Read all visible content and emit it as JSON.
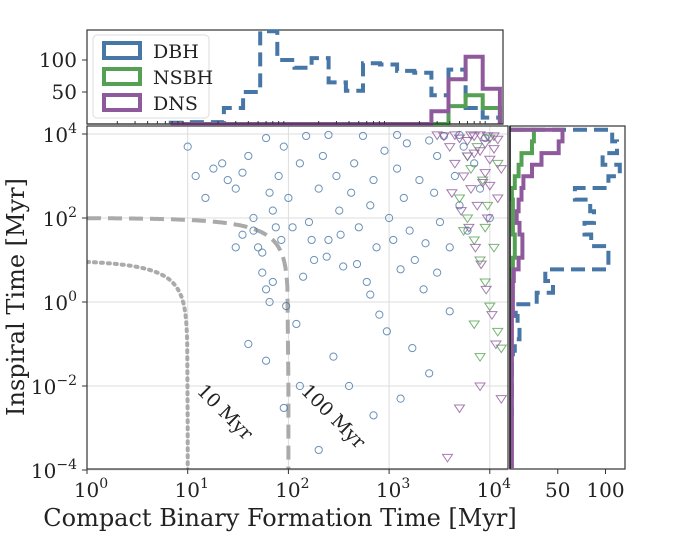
{
  "chart_data": {
    "type": "scatter",
    "xlabel": "Compact Binary Formation Time [Myr]",
    "ylabel": "Inspiral Time [Myr]",
    "xscale": "log",
    "yscale": "log",
    "xlim": [
      1,
      15000
    ],
    "ylim": [
      0.0001,
      16000
    ],
    "grid": true,
    "x_ticks": [
      {
        "base": "10",
        "exp": "0",
        "value": 1
      },
      {
        "base": "10",
        "exp": "1",
        "value": 10
      },
      {
        "base": "10",
        "exp": "2",
        "value": 100
      },
      {
        "base": "10",
        "exp": "3",
        "value": 1000
      },
      {
        "base": "10",
        "exp": "4",
        "value": 10000
      }
    ],
    "y_ticks": [
      {
        "base": "10",
        "exp": "−4",
        "value": 0.0001
      },
      {
        "base": "10",
        "exp": "−2",
        "value": 0.01
      },
      {
        "base": "10",
        "exp": "0",
        "value": 1
      },
      {
        "base": "10",
        "exp": "2",
        "value": 100
      },
      {
        "base": "10",
        "exp": "4",
        "value": 10000
      }
    ],
    "legend": {
      "placement": "top-left of top histogram",
      "entries": [
        "DBH",
        "NSBH",
        "DNS"
      ]
    },
    "series": [
      {
        "name": "DBH",
        "color": "#4677a6",
        "marker": "circle",
        "points": [
          [
            15,
            300
          ],
          [
            12,
            1000
          ],
          [
            18,
            1500
          ],
          [
            25,
            800
          ],
          [
            22,
            2000
          ],
          [
            30,
            500
          ],
          [
            35,
            1200
          ],
          [
            40,
            3000
          ],
          [
            45,
            50
          ],
          [
            50,
            20
          ],
          [
            55,
            5
          ],
          [
            60,
            2
          ],
          [
            60,
            8000
          ],
          [
            65,
            400
          ],
          [
            70,
            150
          ],
          [
            75,
            60
          ],
          [
            80,
            1000
          ],
          [
            85,
            30
          ],
          [
            90,
            5000
          ],
          [
            100,
            300
          ],
          [
            110,
            60
          ],
          [
            120,
            0.3
          ],
          [
            130,
            2000
          ],
          [
            150,
            9000
          ],
          [
            160,
            80
          ],
          [
            180,
            10
          ],
          [
            200,
            500
          ],
          [
            220,
            3000
          ],
          [
            250,
            30
          ],
          [
            280,
            0.05
          ],
          [
            300,
            1000
          ],
          [
            320,
            150
          ],
          [
            350,
            7
          ],
          [
            400,
            0.01
          ],
          [
            420,
            400
          ],
          [
            450,
            2000
          ],
          [
            500,
            60
          ],
          [
            550,
            9000
          ],
          [
            600,
            3
          ],
          [
            650,
            200
          ],
          [
            700,
            800
          ],
          [
            750,
            20
          ],
          [
            800,
            0.5
          ],
          [
            900,
            4000
          ],
          [
            1000,
            100
          ],
          [
            1100,
            30
          ],
          [
            1200,
            1500
          ],
          [
            1300,
            0.005
          ],
          [
            1400,
            300
          ],
          [
            1500,
            6000
          ],
          [
            1600,
            50
          ],
          [
            1800,
            10
          ],
          [
            2000,
            800
          ],
          [
            2200,
            2
          ],
          [
            2500,
            0.02
          ],
          [
            2800,
            400
          ],
          [
            3000,
            3000
          ],
          [
            3200,
            80
          ],
          [
            3500,
            9000
          ],
          [
            4000,
            20
          ],
          [
            4500,
            1000
          ],
          [
            5000,
            200
          ],
          [
            5500,
            5000
          ],
          [
            6000,
            50
          ],
          [
            7000,
            2000
          ],
          [
            8000,
            500
          ],
          [
            9000,
            8000
          ],
          [
            10000,
            100
          ],
          [
            40,
            0.1
          ],
          [
            60,
            0.04
          ],
          [
            90,
            0.003
          ],
          [
            130,
            0.01
          ],
          [
            200,
            0.0003
          ],
          [
            30,
            20
          ],
          [
            35,
            40
          ],
          [
            45,
            100
          ],
          [
            55,
            15
          ],
          [
            70,
            3
          ],
          [
            65,
            1
          ],
          [
            95,
            0.8
          ],
          [
            140,
            4
          ],
          [
            170,
            30
          ],
          [
            240,
            12
          ],
          [
            330,
            40
          ],
          [
            480,
            8
          ],
          [
            650,
            1.5
          ],
          [
            950,
            0.2
          ],
          [
            1300,
            6
          ],
          [
            1700,
            0.08
          ],
          [
            2300,
            25
          ],
          [
            3000,
            5
          ],
          [
            700,
            0.002
          ],
          [
            4000,
            0.6
          ],
          [
            10,
            5000
          ],
          [
            250,
            9500
          ],
          [
            1200,
            9500
          ],
          [
            2500,
            7000
          ],
          [
            5000,
            9500
          ]
        ]
      },
      {
        "name": "NSBH",
        "color": "#55a153",
        "marker": "triangle-down",
        "points": [
          [
            5000,
            300
          ],
          [
            6000,
            100
          ],
          [
            7000,
            30
          ],
          [
            8000,
            10
          ],
          [
            9000,
            3
          ],
          [
            10000,
            0.8
          ],
          [
            12000,
            0.2
          ],
          [
            6500,
            1500
          ],
          [
            7500,
            5000
          ],
          [
            8500,
            800
          ],
          [
            5500,
            50
          ],
          [
            11000,
            20
          ],
          [
            9500,
            200
          ],
          [
            6000,
            3000
          ],
          [
            13000,
            0.08
          ],
          [
            7000,
            0.3
          ],
          [
            8000,
            0.05
          ],
          [
            12000,
            2000
          ],
          [
            10000,
            8000
          ],
          [
            9000,
            60
          ]
        ]
      },
      {
        "name": "DNS",
        "color": "#8e5a9c",
        "marker": "triangle-down",
        "points": [
          [
            3500,
            9000
          ],
          [
            4000,
            5000
          ],
          [
            4500,
            2000
          ],
          [
            5000,
            8000
          ],
          [
            5500,
            1000
          ],
          [
            6000,
            3000
          ],
          [
            6500,
            500
          ],
          [
            7000,
            9000
          ],
          [
            7500,
            200
          ],
          [
            8000,
            4000
          ],
          [
            8500,
            700
          ],
          [
            9000,
            6000
          ],
          [
            9500,
            100
          ],
          [
            10000,
            2500
          ],
          [
            11000,
            9000
          ],
          [
            12000,
            300
          ],
          [
            13000,
            1500
          ],
          [
            4200,
            400
          ],
          [
            5200,
            150
          ],
          [
            6200,
            60
          ],
          [
            7200,
            20
          ],
          [
            8200,
            8
          ],
          [
            9200,
            2
          ],
          [
            10500,
            0.5
          ],
          [
            11500,
            0.1
          ],
          [
            3800,
            0.0002
          ],
          [
            5000,
            0.003
          ],
          [
            8000,
            0.01
          ],
          [
            13000,
            0.005
          ],
          [
            6000,
            7000
          ],
          [
            7000,
            3500
          ],
          [
            8000,
            9500
          ],
          [
            9000,
            1200
          ],
          [
            10000,
            600
          ],
          [
            11000,
            4500
          ],
          [
            12000,
            7500
          ],
          [
            4500,
            9500
          ],
          [
            6500,
            9500
          ],
          [
            3000,
            9500
          ],
          [
            9500,
            9000
          ]
        ]
      }
    ],
    "curves": [
      {
        "label": "10 Myr",
        "total_time": 10,
        "style": "dotted",
        "color": "#aaaaaa"
      },
      {
        "label": "100 Myr",
        "total_time": 100,
        "style": "dashed",
        "color": "#aaaaaa"
      }
    ],
    "top_histogram": {
      "type": "step-histogram",
      "yticks": [
        "50",
        "100"
      ],
      "ytick_values": [
        50,
        100
      ],
      "bin_edges_myr": [
        6.8,
        10,
        14.8,
        22.9,
        35.5,
        52.5,
        77.6,
        115,
        170,
        251,
        372,
        550,
        813,
        1202,
        1778,
        2630,
        3890,
        5754,
        8511,
        12589
      ],
      "series": [
        {
          "name": "DBH",
          "style": "dashed",
          "counts": [
            2,
            3,
            3,
            25,
            50,
            145,
            100,
            88,
            103,
            65,
            52,
            95,
            93,
            83,
            80,
            45,
            85,
            25,
            10
          ]
        },
        {
          "name": "NSBH",
          "style": "solid",
          "counts": [
            0,
            0,
            0,
            0,
            0,
            0,
            0,
            0,
            0,
            0,
            0,
            0,
            0,
            0,
            0,
            0,
            28,
            45,
            25
          ]
        },
        {
          "name": "DNS",
          "style": "solid",
          "counts": [
            0,
            0,
            0,
            0,
            0,
            0,
            0,
            0,
            0,
            0,
            0,
            0,
            0,
            0,
            0,
            20,
            70,
            105,
            55
          ]
        }
      ]
    },
    "right_histogram": {
      "type": "step-histogram",
      "xticks": [
        "50",
        "100"
      ],
      "xtick_values": [
        50,
        100
      ],
      "log10_bin_top": 4.1,
      "log10_bin_width": 0.277,
      "series": [
        {
          "name": "DBH",
          "style": "dashed",
          "counts": [
            107,
            112,
            97,
            115,
            103,
            68,
            84,
            88,
            78,
            85,
            103,
            103,
            37,
            45,
            28,
            6,
            8,
            10,
            5,
            3,
            2,
            2,
            2,
            1,
            2,
            1,
            1,
            1,
            1
          ]
        },
        {
          "name": "NSBH",
          "style": "solid",
          "counts": [
            25,
            23,
            12,
            9,
            5,
            2,
            3,
            3,
            3,
            5,
            5,
            3,
            1,
            1,
            1,
            0,
            0,
            0,
            0,
            0,
            0,
            0,
            0,
            0,
            0,
            0,
            0,
            0,
            0
          ]
        },
        {
          "name": "DNS",
          "style": "solid",
          "counts": [
            55,
            51,
            33,
            23,
            14,
            12,
            9,
            7,
            10,
            13,
            13,
            9,
            4,
            3,
            3,
            3,
            2,
            2,
            2,
            2,
            2,
            2,
            2,
            2,
            2,
            2,
            2,
            2,
            2
          ]
        }
      ]
    }
  }
}
